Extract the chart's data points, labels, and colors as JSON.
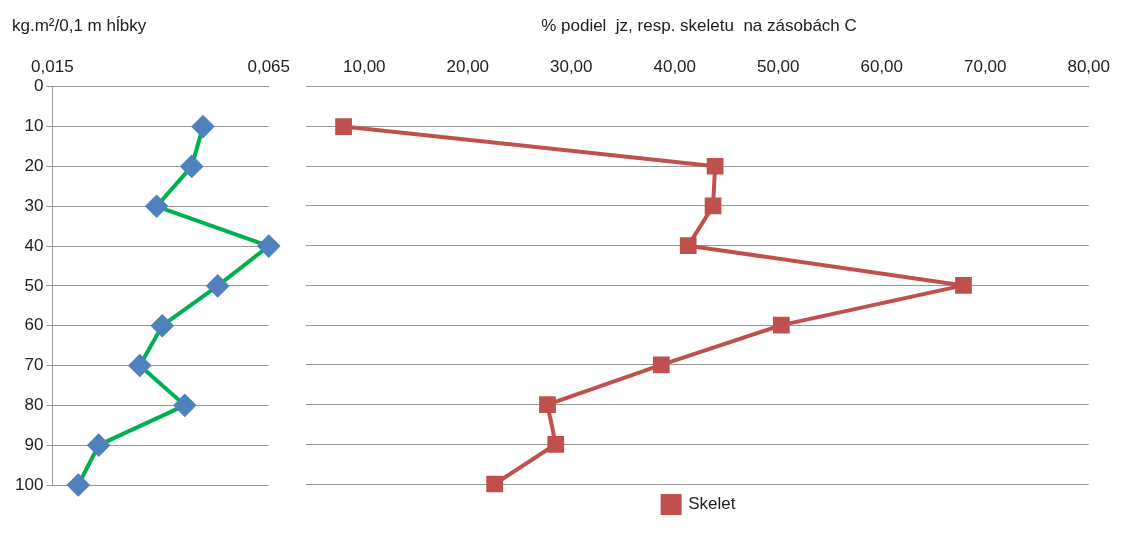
{
  "chart_data": [
    {
      "type": "line",
      "orientation": "horizontal",
      "title": "kg.m²/0,1 m hĺbky",
      "x": [
        10,
        20,
        30,
        40,
        50,
        60,
        70,
        80,
        90,
        100
      ],
      "series": [
        {
          "color": "#00b050",
          "colors": [
            "#4f81bd",
            "#4f81bd",
            "#4f81bd",
            "#4f81bd",
            "#4f81bd",
            "#4f81bd",
            "#4f81bd",
            "#4f81bd",
            "#4f81bd",
            "#4f81bd"
          ],
          "values": [
            0.0498,
            0.0472,
            0.0391,
            0.065,
            0.0532,
            0.0404,
            0.0352,
            0.0456,
            0.0257,
            0.021
          ]
        }
      ],
      "xlim": [
        0.015,
        0.065
      ],
      "xticks": [
        {
          "value": 0.015,
          "label": "0,015"
        },
        {
          "value": 0.065,
          "label": "0,065"
        }
      ],
      "ylim": [
        100,
        0
      ],
      "yticks": [
        0,
        10,
        20,
        30,
        40,
        50,
        60,
        70,
        80,
        90,
        100
      ],
      "grid": "y",
      "legend": false,
      "marker": "diamond",
      "line_style": "solid"
    },
    {
      "type": "line",
      "orientation": "horizontal",
      "title": "% podiel  jz, resp. skeletu  na zásobách C",
      "x": [
        10,
        20,
        30,
        40,
        50,
        60,
        70,
        80,
        90,
        100
      ],
      "series": [
        {
          "name": "Skelet",
          "color": "#c0504d",
          "values": [
            8.0,
            43.9,
            43.7,
            41.3,
            67.9,
            50.3,
            38.7,
            27.7,
            28.5,
            22.6
          ]
        }
      ],
      "xlim": [
        4.37,
        80
      ],
      "xticks": [
        {
          "value": 10,
          "label": "10,00"
        },
        {
          "value": 20,
          "label": "20,00"
        },
        {
          "value": 30,
          "label": "30,00"
        },
        {
          "value": 40,
          "label": "40,00"
        },
        {
          "value": 50,
          "label": "50,00"
        },
        {
          "value": 60,
          "label": "60,00"
        },
        {
          "value": 70,
          "label": "70,00"
        },
        {
          "value": 80,
          "label": "80,00"
        }
      ],
      "ylim": [
        100,
        0
      ],
      "yticks": [
        0,
        10,
        20,
        30,
        40,
        50,
        60,
        70,
        80,
        90,
        100
      ],
      "grid": "y",
      "legend": "bottom",
      "tick_labels": "x",
      "marker": "square",
      "line_style": "solid"
    }
  ]
}
